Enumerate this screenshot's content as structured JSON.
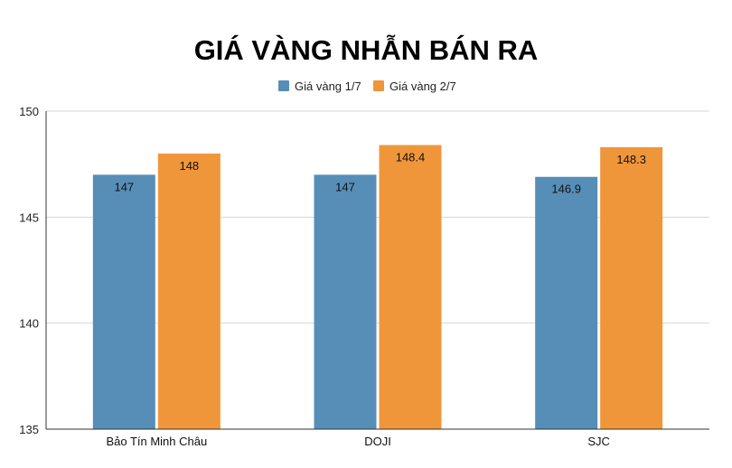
{
  "chart_data": {
    "type": "bar",
    "title": "GIÁ VÀNG NHẪN BÁN RA",
    "categories": [
      "Bảo Tín Minh Châu",
      "DOJI",
      "SJC"
    ],
    "series": [
      {
        "name": "Giá vàng 1/7",
        "color": "#568EB8",
        "values": [
          147,
          147,
          146.9
        ],
        "labels": [
          "147",
          "147",
          "146.9"
        ]
      },
      {
        "name": "Giá vàng 2/7",
        "color": "#F0963A",
        "values": [
          148,
          148.4,
          148.3
        ],
        "labels": [
          "148",
          "148.4",
          "148.3"
        ]
      }
    ],
    "ylim": [
      135,
      150
    ],
    "yticks": [
      "135",
      "140",
      "145",
      "150"
    ],
    "xlabel": "",
    "ylabel": "",
    "grid": true,
    "legend_position": "top-center"
  }
}
